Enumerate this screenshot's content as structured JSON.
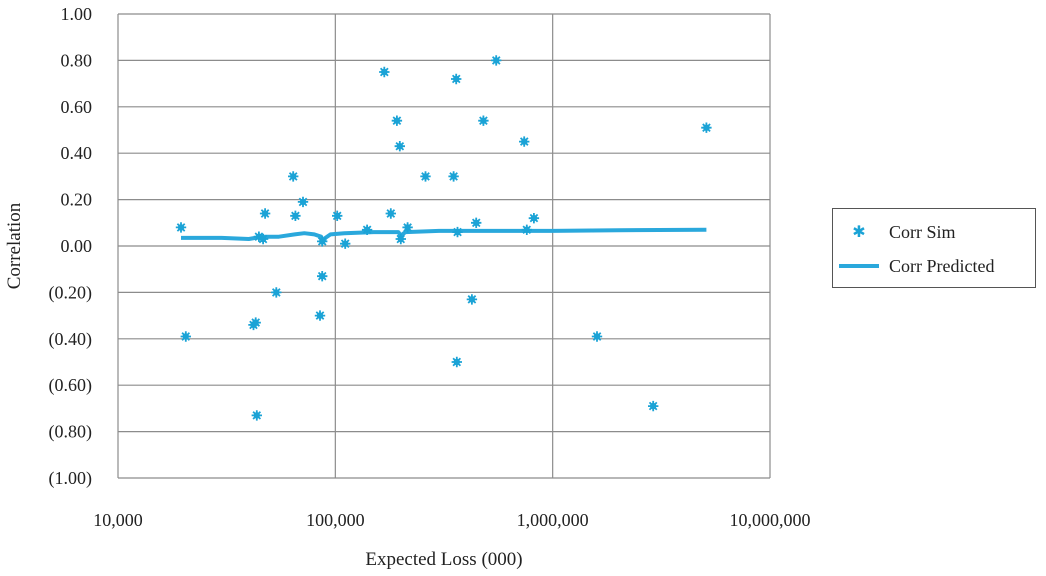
{
  "chart_data": {
    "type": "scatter",
    "xlabel": "Expected Loss (000)",
    "ylabel": "Correlation",
    "x_scale": "log",
    "xlim": [
      10000,
      10000000
    ],
    "ylim": [
      -1.0,
      1.0
    ],
    "x_ticks": [
      {
        "value": 10000,
        "label": "10,000"
      },
      {
        "value": 100000,
        "label": "100,000"
      },
      {
        "value": 1000000,
        "label": "1,000,000"
      },
      {
        "value": 10000000,
        "label": "10,000,000"
      }
    ],
    "y_ticks": [
      {
        "value": 1.0,
        "label": "1.00"
      },
      {
        "value": 0.8,
        "label": "0.80"
      },
      {
        "value": 0.6,
        "label": "0.60"
      },
      {
        "value": 0.4,
        "label": "0.40"
      },
      {
        "value": 0.2,
        "label": "0.20"
      },
      {
        "value": 0.0,
        "label": "0.00"
      },
      {
        "value": -0.2,
        "label": "(0.20)"
      },
      {
        "value": -0.4,
        "label": "(0.40)"
      },
      {
        "value": -0.6,
        "label": "(0.60)"
      },
      {
        "value": -0.8,
        "label": "(0.80)"
      },
      {
        "value": -1.0,
        "label": "(1.00)"
      }
    ],
    "grid": {
      "horizontal": true,
      "vertical": true
    },
    "legend_position": "right",
    "colors": {
      "series": "#1ba3d6",
      "line": "#2aa8dc",
      "grid": "#8c8c8c"
    },
    "series": [
      {
        "name": "Corr Sim",
        "type": "scatter",
        "marker": "star",
        "points": [
          [
            19500,
            0.08
          ],
          [
            20500,
            -0.39
          ],
          [
            42000,
            -0.34
          ],
          [
            43000,
            -0.33
          ],
          [
            43500,
            -0.73
          ],
          [
            44500,
            0.04
          ],
          [
            46500,
            0.03
          ],
          [
            47500,
            0.14
          ],
          [
            53500,
            -0.2
          ],
          [
            64000,
            0.3
          ],
          [
            65500,
            0.13
          ],
          [
            71000,
            0.19
          ],
          [
            85000,
            -0.3
          ],
          [
            87000,
            -0.13
          ],
          [
            87000,
            0.02
          ],
          [
            102000,
            0.13
          ],
          [
            111000,
            0.01
          ],
          [
            140000,
            0.07
          ],
          [
            168000,
            0.75
          ],
          [
            180000,
            0.14
          ],
          [
            192000,
            0.54
          ],
          [
            198000,
            0.43
          ],
          [
            200000,
            0.03
          ],
          [
            215000,
            0.08
          ],
          [
            260000,
            0.3
          ],
          [
            350000,
            0.3
          ],
          [
            360000,
            0.72
          ],
          [
            362000,
            -0.5
          ],
          [
            365000,
            0.06
          ],
          [
            425000,
            -0.23
          ],
          [
            445000,
            0.1
          ],
          [
            480000,
            0.54
          ],
          [
            550000,
            0.8
          ],
          [
            740000,
            0.45
          ],
          [
            760000,
            0.07
          ],
          [
            820000,
            0.12
          ],
          [
            1600000,
            -0.39
          ],
          [
            2900000,
            -0.69
          ],
          [
            5100000,
            0.51
          ]
        ]
      },
      {
        "name": "Corr Predicted",
        "type": "line",
        "points": [
          [
            19500,
            0.035
          ],
          [
            30000,
            0.035
          ],
          [
            40000,
            0.03
          ],
          [
            46000,
            0.04
          ],
          [
            55000,
            0.04
          ],
          [
            65000,
            0.05
          ],
          [
            72000,
            0.055
          ],
          [
            80000,
            0.05
          ],
          [
            86000,
            0.04
          ],
          [
            88000,
            0.02
          ],
          [
            90000,
            0.035
          ],
          [
            95000,
            0.05
          ],
          [
            110000,
            0.055
          ],
          [
            150000,
            0.06
          ],
          [
            195000,
            0.06
          ],
          [
            200000,
            0.045
          ],
          [
            210000,
            0.06
          ],
          [
            300000,
            0.065
          ],
          [
            500000,
            0.065
          ],
          [
            1000000,
            0.065
          ],
          [
            2000000,
            0.068
          ],
          [
            5100000,
            0.07
          ]
        ]
      }
    ]
  }
}
